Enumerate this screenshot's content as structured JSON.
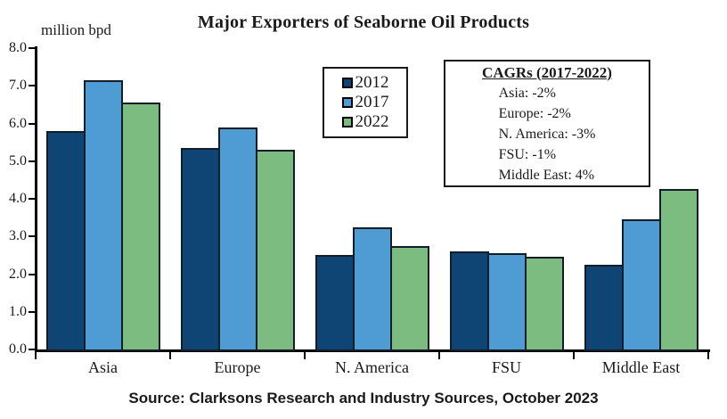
{
  "chart_data": {
    "type": "bar",
    "title": "Major Exporters of Seaborne Oil Products",
    "ylabel": "million bpd",
    "ylim": [
      0,
      8
    ],
    "ytick_step": 1,
    "ytick_labels": [
      "0.0",
      "1.0",
      "2.0",
      "3.0",
      "4.0",
      "5.0",
      "6.0",
      "7.0",
      "8.0"
    ],
    "grid": false,
    "legend_position": "top-center",
    "categories": [
      "Asia",
      "Europe",
      "N. America",
      "FSU",
      "Middle East"
    ],
    "series": [
      {
        "name": "2012",
        "color": "#0E4574",
        "values": [
          5.8,
          5.35,
          2.5,
          2.6,
          2.25
        ]
      },
      {
        "name": "2017",
        "color": "#4F9BD3",
        "values": [
          7.15,
          5.9,
          3.25,
          2.55,
          3.45
        ]
      },
      {
        "name": "2022",
        "color": "#7CBC80",
        "values": [
          6.55,
          5.3,
          2.75,
          2.45,
          4.25
        ]
      }
    ]
  },
  "annotation_box": {
    "title": "CAGRs (2017-2022)",
    "lines": [
      "Asia: -2%",
      "Europe: -2%",
      "N. America: -3%",
      "FSU: -1%",
      "Middle East: 4%"
    ]
  },
  "footer": {
    "source": "Source: Clarksons Research and Industry Sources, October 2023"
  }
}
